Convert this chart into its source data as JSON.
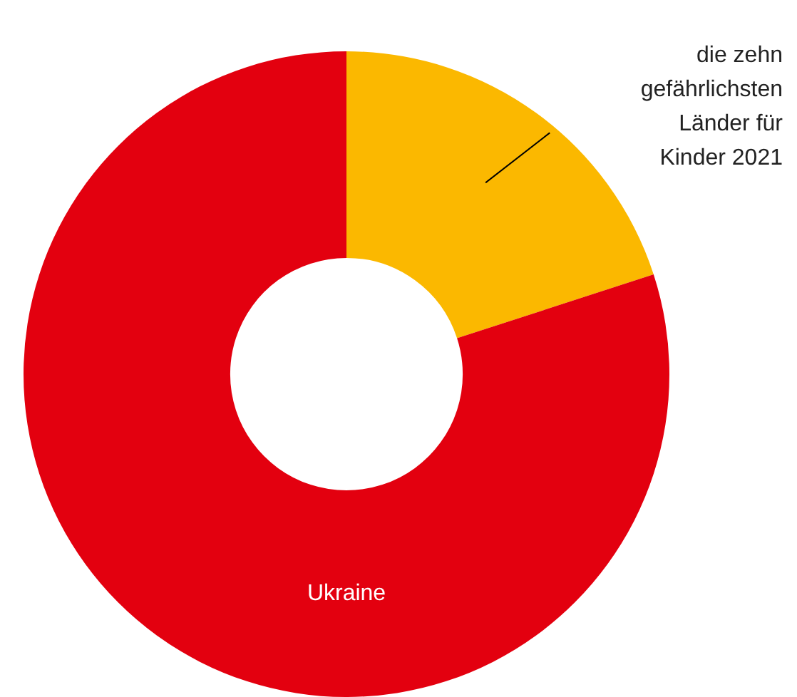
{
  "chart_data": {
    "type": "donut",
    "categories": [
      "die zehn gefährlichsten Länder für Kinder 2021",
      "Ukraine"
    ],
    "values": [
      20,
      80
    ],
    "colors": [
      "#fbb800",
      "#e3000f"
    ],
    "legend": false
  }
}
